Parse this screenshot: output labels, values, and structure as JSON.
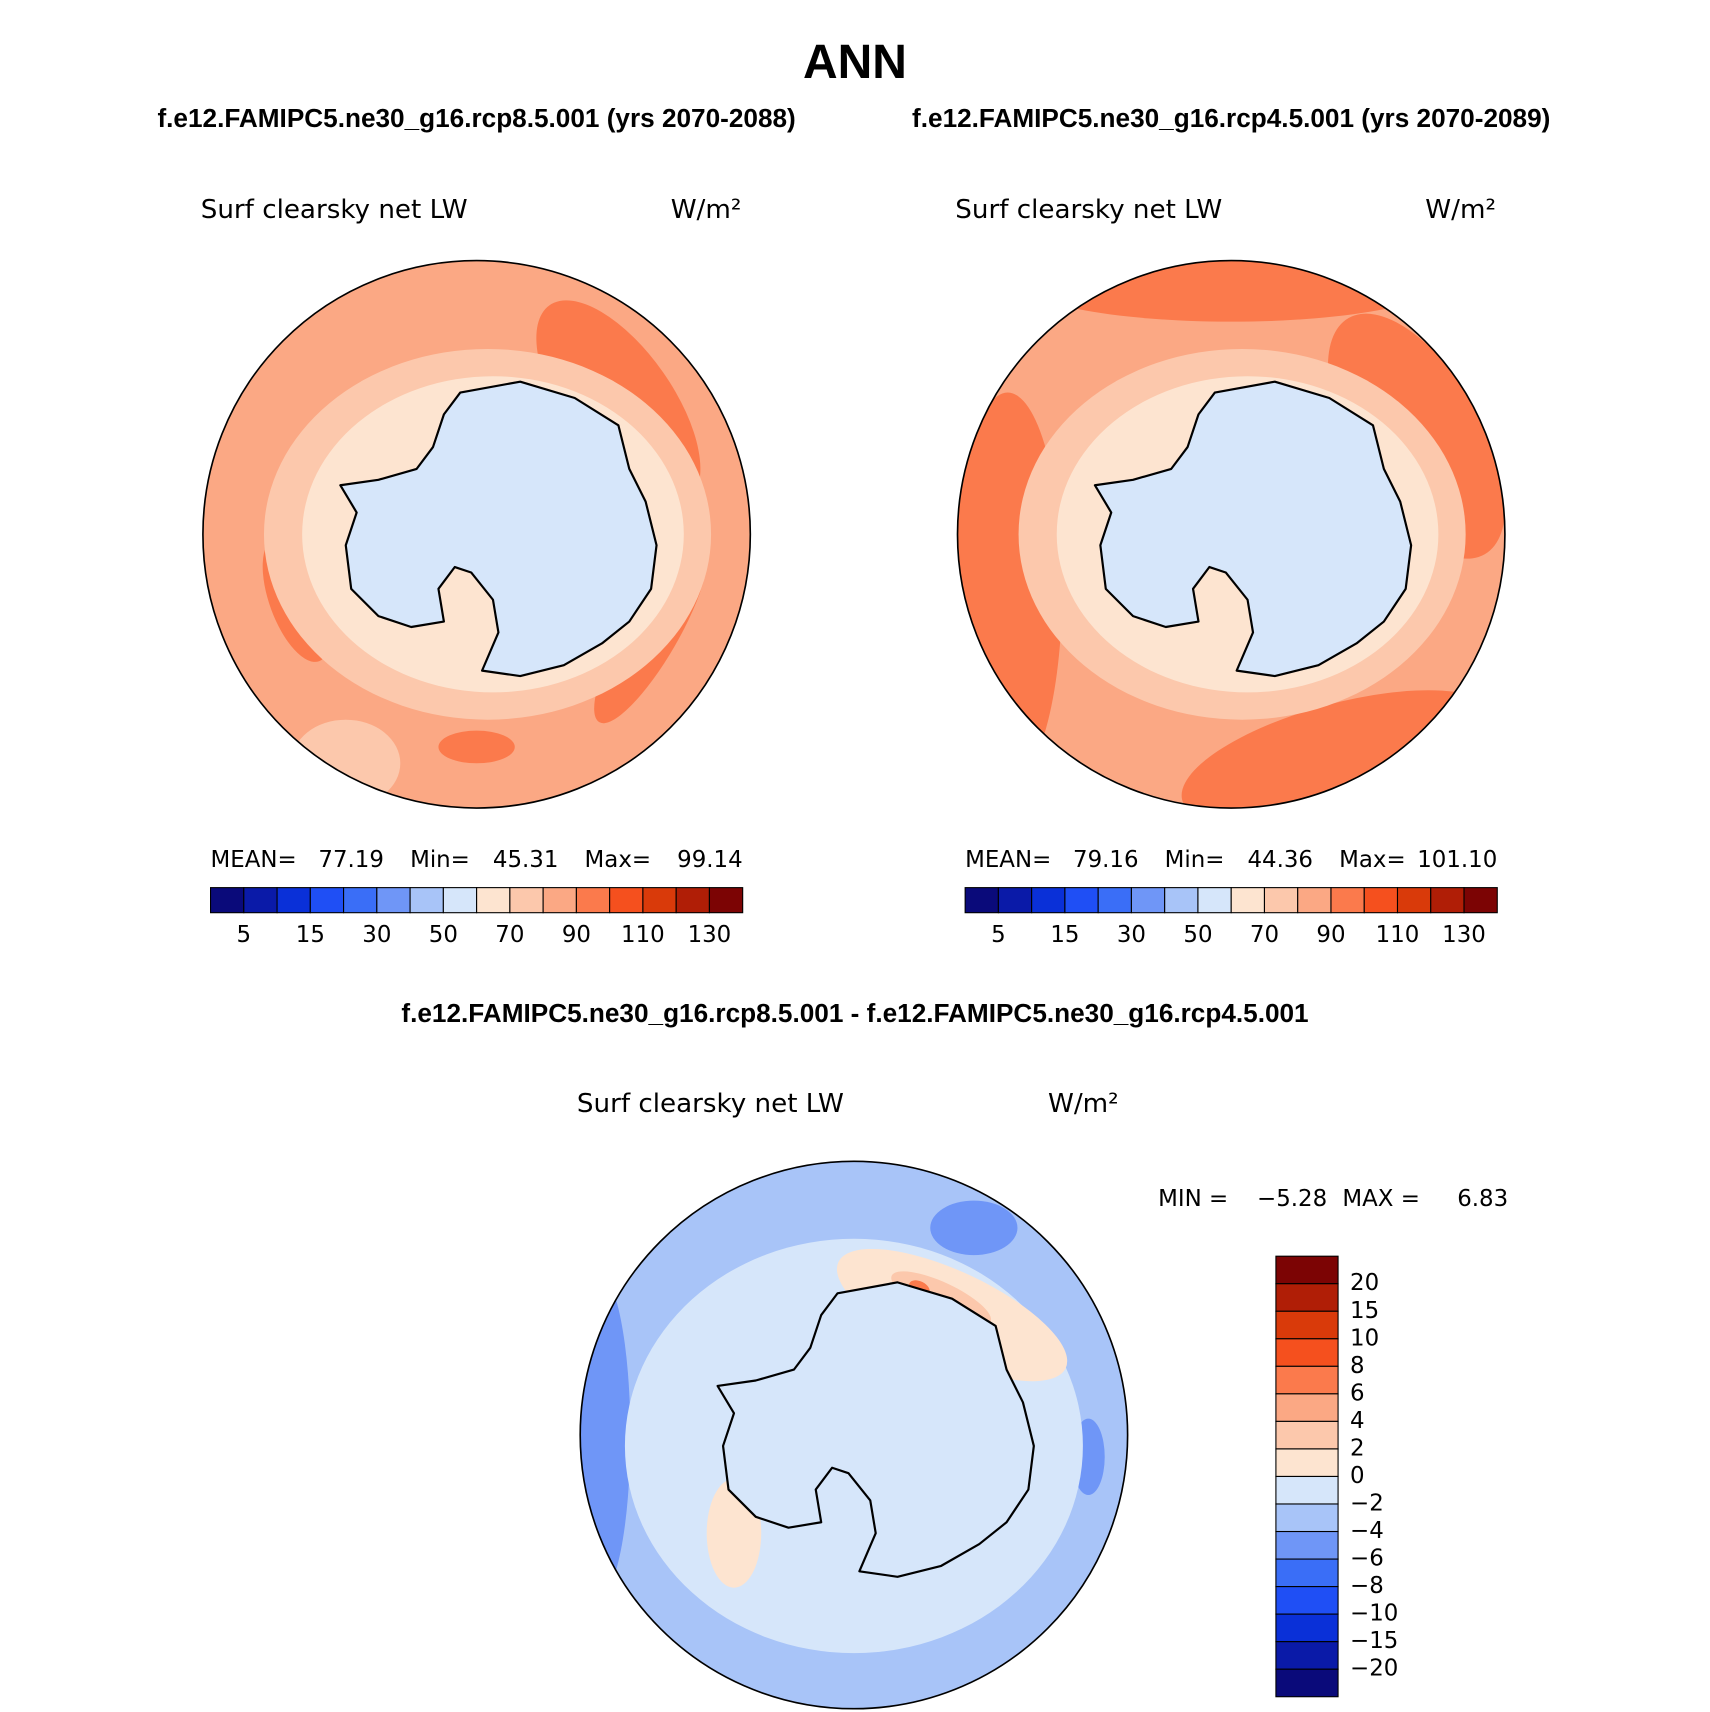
{
  "title": "ANN",
  "panels": [
    {
      "subtitle": "f.e12.FAMIPC5.ne30_g16.rcp8.5.001 (yrs 2070-2088)",
      "label": "Surf clearsky net LW",
      "units": "W/m²",
      "stats": [
        "MEAN=",
        "77.19",
        "Min=",
        "45.31",
        "Max=",
        "99.14"
      ],
      "colorbar": {
        "labels": [
          "5",
          "15",
          "30",
          "50",
          "70",
          "90",
          "110",
          "130"
        ],
        "colors": [
          "#0a0a7a",
          "#0a1aa8",
          "#0a30d8",
          "#1f4ff5",
          "#3a6ef7",
          "#6f96f7",
          "#a8c4f8",
          "#d6e6fa",
          "#fde4d0",
          "#fcc8ac",
          "#fba884",
          "#fb7a4c",
          "#f5501e",
          "#d93a0a",
          "#b01e06",
          "#7c0404"
        ]
      }
    },
    {
      "subtitle": "f.e12.FAMIPC5.ne30_g16.rcp4.5.001 (yrs 2070-2089)",
      "label": "Surf clearsky net LW",
      "units": "W/m²",
      "stats": [
        "MEAN=",
        "79.16",
        "Min=",
        "44.36",
        "Max=",
        "101.10"
      ],
      "colorbar": {
        "labels": [
          "5",
          "15",
          "30",
          "50",
          "70",
          "90",
          "110",
          "130"
        ],
        "colors": [
          "#0a0a7a",
          "#0a1aa8",
          "#0a30d8",
          "#1f4ff5",
          "#3a6ef7",
          "#6f96f7",
          "#a8c4f8",
          "#d6e6fa",
          "#fde4d0",
          "#fcc8ac",
          "#fba884",
          "#fb7a4c",
          "#f5501e",
          "#d93a0a",
          "#b01e06",
          "#7c0404"
        ]
      }
    }
  ],
  "difference": {
    "subtitle": "f.e12.FAMIPC5.ne30_g16.rcp8.5.001 - f.e12.FAMIPC5.ne30_g16.rcp4.5.001",
    "label": "Surf clearsky net LW",
    "units": "W/m²",
    "stats": [
      "MIN =",
      "−5.28",
      "MAX =",
      "6.83"
    ],
    "colorbar": {
      "labels": [
        "20",
        "15",
        "10",
        "8",
        "6",
        "4",
        "2",
        "0",
        "−2",
        "−4",
        "−6",
        "−8",
        "−10",
        "−15",
        "−20"
      ],
      "colors": [
        "#7c0404",
        "#b01e06",
        "#d93a0a",
        "#f5501e",
        "#fb7a4c",
        "#fba884",
        "#fcc8ac",
        "#fde4d0",
        "#d6e6fa",
        "#a8c4f8",
        "#6f96f7",
        "#3a6ef7",
        "#1f4ff5",
        "#0a30d8",
        "#0a1aa8",
        "#0a0a7a"
      ]
    }
  }
}
